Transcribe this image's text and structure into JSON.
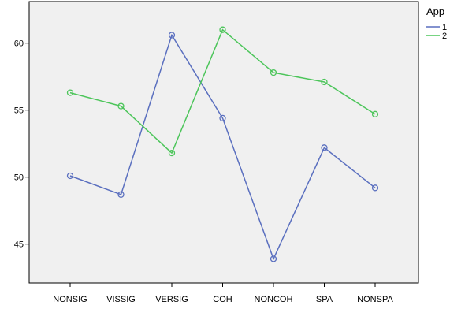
{
  "chart_data": {
    "type": "line",
    "categories": [
      "NONSIG",
      "VISSIG",
      "VERSIG",
      "COH",
      "NONCOH",
      "SPA",
      "NONSPA"
    ],
    "series": [
      {
        "name": "1",
        "color": "#5a6fbf",
        "values": [
          50.1,
          48.7,
          60.6,
          54.4,
          43.9,
          52.2,
          49.2
        ]
      },
      {
        "name": "2",
        "color": "#4cc55a",
        "values": [
          56.3,
          55.3,
          51.8,
          61.0,
          57.8,
          57.1,
          54.7
        ]
      }
    ],
    "y_ticks": [
      45,
      50,
      55,
      60
    ],
    "ylim": [
      42.1,
      63.1
    ],
    "grid": false,
    "legend": {
      "title": "App",
      "position": "top-right"
    },
    "title": "",
    "xlabel": "",
    "ylabel": "",
    "plot_background": "#f0f0f0"
  }
}
